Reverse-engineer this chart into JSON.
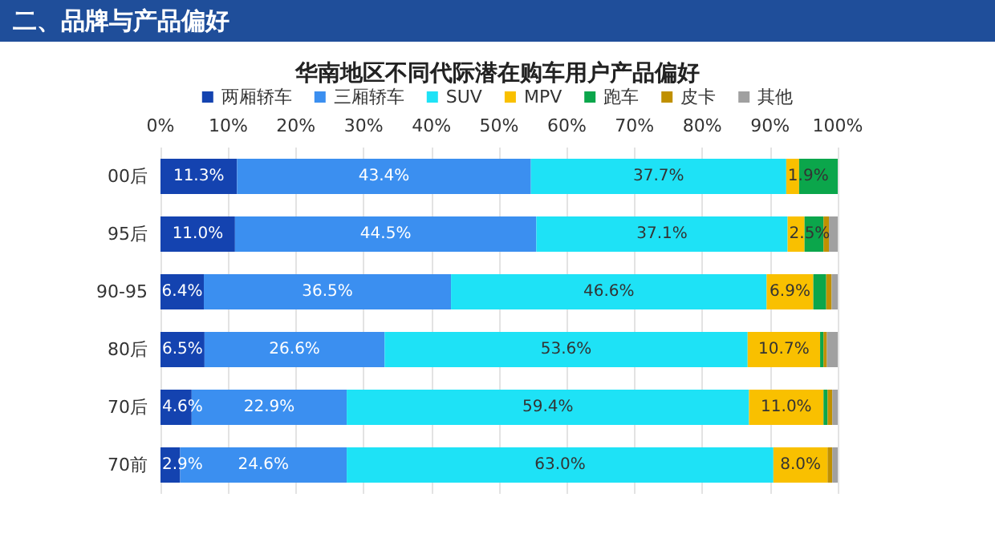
{
  "chart_data": {
    "type": "bar",
    "orientation": "horizontal",
    "stacked": true,
    "title": "华南地区不同代际潜在购车用户产品偏好",
    "annotations": [
      "二、品牌与产品偏好"
    ],
    "categories": [
      "00后",
      "95后",
      "90-95",
      "80后",
      "70后",
      "70前"
    ],
    "series": [
      {
        "name": "两厢轿车",
        "color": "#1443b0",
        "values": [
          11.3,
          11.0,
          6.4,
          6.5,
          4.6,
          2.9
        ],
        "value_labels": [
          "11.3%",
          "11.0%",
          "6.4%",
          "6.5%",
          "4.6%",
          "2.9%"
        ]
      },
      {
        "name": "三厢轿车",
        "color": "#3b8ff0",
        "values": [
          43.4,
          44.5,
          36.5,
          26.6,
          22.9,
          24.6
        ],
        "value_labels": [
          "43.4%",
          "44.5%",
          "36.5%",
          "26.6%",
          "22.9%",
          "24.6%"
        ]
      },
      {
        "name": "SUV",
        "color": "#1ee2f6",
        "values": [
          37.7,
          37.1,
          46.6,
          53.6,
          59.4,
          63.0
        ],
        "value_labels": [
          "37.7%",
          "37.1%",
          "46.6%",
          "53.6%",
          "59.4%",
          "63.0%"
        ]
      },
      {
        "name": "MPV",
        "color": "#f9c000",
        "values": [
          1.9,
          2.5,
          6.9,
          10.7,
          11.0,
          8.0
        ],
        "value_labels": [
          "1.9%",
          "2.5%",
          "6.9%",
          "10.7%",
          "11.0%",
          "8.0%"
        ]
      },
      {
        "name": "跑车",
        "color": "#0ba64b",
        "values": [
          5.7,
          2.8,
          1.9,
          0.5,
          0.6,
          0.0
        ]
      },
      {
        "name": "皮卡",
        "color": "#c09000",
        "values": [
          0.0,
          0.8,
          0.8,
          0.5,
          0.7,
          0.7
        ]
      },
      {
        "name": "其他",
        "color": "#a0a0a0",
        "values": [
          0.0,
          1.3,
          0.9,
          1.6,
          0.8,
          0.8
        ]
      }
    ],
    "xlim": [
      0,
      100
    ],
    "xticks": [
      {
        "value": 0,
        "label": "0%"
      },
      {
        "value": 10,
        "label": "10%"
      },
      {
        "value": 20,
        "label": "20%"
      },
      {
        "value": 30,
        "label": "30%"
      },
      {
        "value": 40,
        "label": "40%"
      },
      {
        "value": 50,
        "label": "50%"
      },
      {
        "value": 60,
        "label": "60%"
      },
      {
        "value": 70,
        "label": "70%"
      },
      {
        "value": 80,
        "label": "80%"
      },
      {
        "value": 90,
        "label": "90%"
      },
      {
        "value": 100,
        "label": "100%"
      }
    ],
    "grid": "x",
    "legend": "top"
  }
}
